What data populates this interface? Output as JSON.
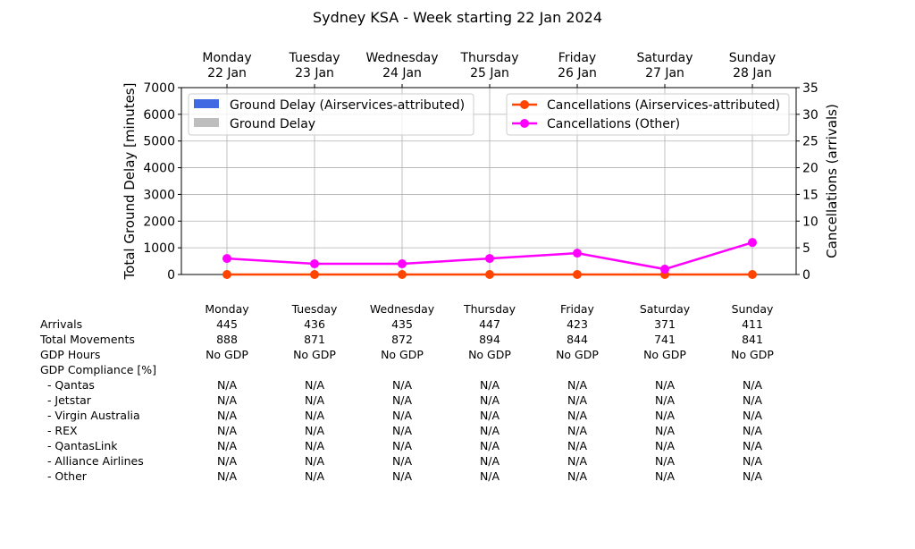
{
  "chart_data": {
    "type": "line",
    "title": "Sydney KSA - Week starting 22 Jan 2024",
    "categories": [
      [
        "Monday",
        "22 Jan"
      ],
      [
        "Tuesday",
        "23 Jan"
      ],
      [
        "Wednesday",
        "24 Jan"
      ],
      [
        "Thursday",
        "25 Jan"
      ],
      [
        "Friday",
        "26 Jan"
      ],
      [
        "Saturday",
        "27 Jan"
      ],
      [
        "Sunday",
        "28 Jan"
      ]
    ],
    "ylabel": "Total Ground Delay [minutes]",
    "ylabel_right": "Cancellations (arrivals)",
    "ylim": [
      0,
      7000
    ],
    "ylim_right": [
      0,
      35
    ],
    "yticks": [
      0,
      1000,
      2000,
      3000,
      4000,
      5000,
      6000,
      7000
    ],
    "yticks_right": [
      0,
      5,
      10,
      15,
      20,
      25,
      30,
      35
    ],
    "grid": true,
    "bar_series": [
      {
        "name": "Ground Delay (Airservices-attributed)",
        "color": "#4169e1",
        "values": [
          0,
          0,
          0,
          0,
          0,
          0,
          0
        ]
      },
      {
        "name": "Ground Delay",
        "color": "#bebebe",
        "values": [
          0,
          0,
          0,
          0,
          0,
          0,
          0
        ]
      }
    ],
    "line_series": [
      {
        "name": "Cancellations (Airservices-attributed)",
        "color": "#ff4500",
        "values": [
          0,
          0,
          0,
          0,
          0,
          0,
          0
        ]
      },
      {
        "name": "Cancellations (Other)",
        "color": "#ff00ff",
        "values": [
          3,
          2,
          2,
          3,
          4,
          1,
          6
        ]
      }
    ],
    "legend_left": "top-left",
    "legend_right": "top-right"
  },
  "table": {
    "header": [
      "Monday",
      "Tuesday",
      "Wednesday",
      "Thursday",
      "Friday",
      "Saturday",
      "Sunday"
    ],
    "rows": [
      {
        "label": "Arrivals",
        "values": [
          "445",
          "436",
          "435",
          "447",
          "423",
          "371",
          "411"
        ]
      },
      {
        "label": "Total Movements",
        "values": [
          "888",
          "871",
          "872",
          "894",
          "844",
          "741",
          "841"
        ]
      },
      {
        "label": "GDP Hours",
        "values": [
          "No GDP",
          "No GDP",
          "No GDP",
          "No GDP",
          "No GDP",
          "No GDP",
          "No GDP"
        ]
      },
      {
        "label": "GDP Compliance [%]",
        "values": [
          "",
          "",
          "",
          "",
          "",
          "",
          ""
        ]
      },
      {
        "label": "  - Qantas",
        "values": [
          "N/A",
          "N/A",
          "N/A",
          "N/A",
          "N/A",
          "N/A",
          "N/A"
        ]
      },
      {
        "label": "  - Jetstar",
        "values": [
          "N/A",
          "N/A",
          "N/A",
          "N/A",
          "N/A",
          "N/A",
          "N/A"
        ]
      },
      {
        "label": "  - Virgin Australia",
        "values": [
          "N/A",
          "N/A",
          "N/A",
          "N/A",
          "N/A",
          "N/A",
          "N/A"
        ]
      },
      {
        "label": "  - REX",
        "values": [
          "N/A",
          "N/A",
          "N/A",
          "N/A",
          "N/A",
          "N/A",
          "N/A"
        ]
      },
      {
        "label": "  - QantasLink",
        "values": [
          "N/A",
          "N/A",
          "N/A",
          "N/A",
          "N/A",
          "N/A",
          "N/A"
        ]
      },
      {
        "label": "  - Alliance Airlines",
        "values": [
          "N/A",
          "N/A",
          "N/A",
          "N/A",
          "N/A",
          "N/A",
          "N/A"
        ]
      },
      {
        "label": "  - Other",
        "values": [
          "N/A",
          "N/A",
          "N/A",
          "N/A",
          "N/A",
          "N/A",
          "N/A"
        ]
      }
    ]
  }
}
